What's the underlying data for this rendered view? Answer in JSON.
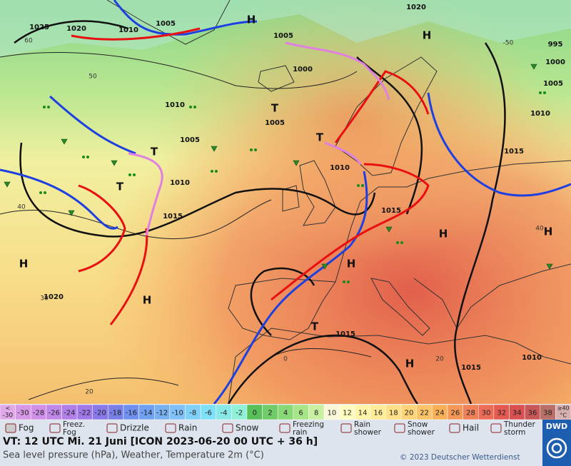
{
  "map": {
    "pressure_labels": [
      1025,
      1020,
      1010,
      1005,
      1005,
      1000,
      1020,
      995,
      1000,
      1005,
      1010,
      1015,
      1010,
      1005,
      1010,
      1015,
      1010,
      1005,
      1015,
      1020,
      1015,
      1010,
      1015
    ],
    "centers": [
      "H",
      "H",
      "T",
      "T",
      "T",
      "T",
      "H",
      "H",
      "H",
      "H",
      "T",
      "H",
      "H"
    ],
    "isotherm_labels": [
      60,
      50,
      40,
      30,
      20,
      0,
      20,
      40,
      -50
    ]
  },
  "legend": {
    "scale": {
      "low_label": [
        "<",
        "-30"
      ],
      "values": [
        -30,
        -28,
        -26,
        -24,
        -22,
        -20,
        -18,
        -16,
        -14,
        -12,
        -10,
        -8,
        -6,
        -4,
        -2,
        0,
        2,
        4,
        6,
        8,
        10,
        12,
        14,
        16,
        18,
        20,
        22,
        24,
        26,
        28,
        30,
        32,
        34,
        36,
        38
      ],
      "high_label": [
        "≥40",
        "°C"
      ],
      "colors": [
        "#e0a8e8",
        "#d898e8",
        "#d090e8",
        "#c088e8",
        "#b080e8",
        "#a078e8",
        "#8878e8",
        "#7880e8",
        "#7090f0",
        "#70a0f0",
        "#78b0f0",
        "#80c0f8",
        "#80d0f8",
        "#80e0f8",
        "#88e8e8",
        "#90f0d8",
        "#58c058",
        "#70cc68",
        "#88d878",
        "#a8e488",
        "#c8f0a0",
        "#f8f8d8",
        "#fffcc0",
        "#fff4a8",
        "#ffec98",
        "#ffe088",
        "#ffd478",
        "#fcc468",
        "#f8b058",
        "#f49858",
        "#f08058",
        "#ec6c58",
        "#e45a50",
        "#d85050",
        "#c85858",
        "#b87068",
        "#d8b0b0"
      ]
    },
    "weather": [
      [
        "Fog"
      ],
      [
        "Freez.",
        "Fog"
      ],
      [
        "Drizzle"
      ],
      [
        "Rain"
      ],
      [
        "Snow"
      ],
      [
        "Freezing",
        "rain"
      ],
      [
        "Rain",
        "shower"
      ],
      [
        "Snow",
        "shower"
      ],
      [
        "Hail"
      ],
      [
        "Thunder",
        "storm"
      ]
    ]
  },
  "footer": {
    "valid_time": "VT: 12 UTC Mi.  21 Juni [ICON 2023-06-20  00 UTC + 36 h]",
    "description": "Sea level pressure (hPa), Weather, Temperature 2m (°C)",
    "copyright": "© 2023 Deutscher Wetterdienst",
    "logo": "DWD"
  }
}
